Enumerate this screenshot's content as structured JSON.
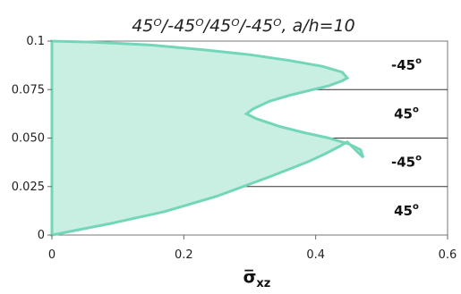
{
  "chart_data": {
    "type": "area",
    "title": "45ᴼ/-45ᴼ/45ᴼ/-45ᴼ, a/h=10",
    "xlabel": "σ̅",
    "xlabel_sub": "xz",
    "ylabel": "",
    "xlim": [
      0,
      0.6
    ],
    "ylim": [
      0,
      0.1
    ],
    "xticks": [
      "0",
      "0.2",
      "0.4",
      "0.6"
    ],
    "yticks": [
      "0",
      "0.025",
      "0.050",
      "0.075",
      "0.1"
    ],
    "series": [
      {
        "x": [
          0.0,
          0.045,
          0.09,
          0.13,
          0.17,
          0.21,
          0.25,
          0.29,
          0.33,
          0.36,
          0.39,
          0.415,
          0.435,
          0.448,
          0.472,
          0.468,
          0.45,
          0.42,
          0.38,
          0.345,
          0.31,
          0.295,
          0.305,
          0.33,
          0.36,
          0.39,
          0.42,
          0.44,
          0.448,
          0.44,
          0.41,
          0.36,
          0.3,
          0.23,
          0.15,
          0.06,
          0.0
        ],
        "y": [
          0.0,
          0.003,
          0.006,
          0.009,
          0.012,
          0.016,
          0.02,
          0.025,
          0.03,
          0.034,
          0.038,
          0.042,
          0.0455,
          0.048,
          0.04,
          0.044,
          0.047,
          0.05,
          0.053,
          0.056,
          0.06,
          0.0625,
          0.065,
          0.069,
          0.072,
          0.0745,
          0.077,
          0.0795,
          0.081,
          0.084,
          0.087,
          0.09,
          0.093,
          0.0955,
          0.098,
          0.0995,
          0.1
        ]
      }
    ],
    "layer_boundaries": [
      0.025,
      0.05,
      0.075
    ],
    "layers": [
      {
        "angle": "-45",
        "y_center": 0.0875
      },
      {
        "angle": "45",
        "y_center": 0.0625
      },
      {
        "angle": "-45",
        "y_center": 0.0375
      },
      {
        "angle": "45",
        "y_center": 0.0125
      }
    ],
    "degree_symbol": "o",
    "colors": {
      "fill": "#c8efe2",
      "stroke": "#74d6b8",
      "divider": "#333333",
      "text": "#222222"
    },
    "grid": false
  }
}
